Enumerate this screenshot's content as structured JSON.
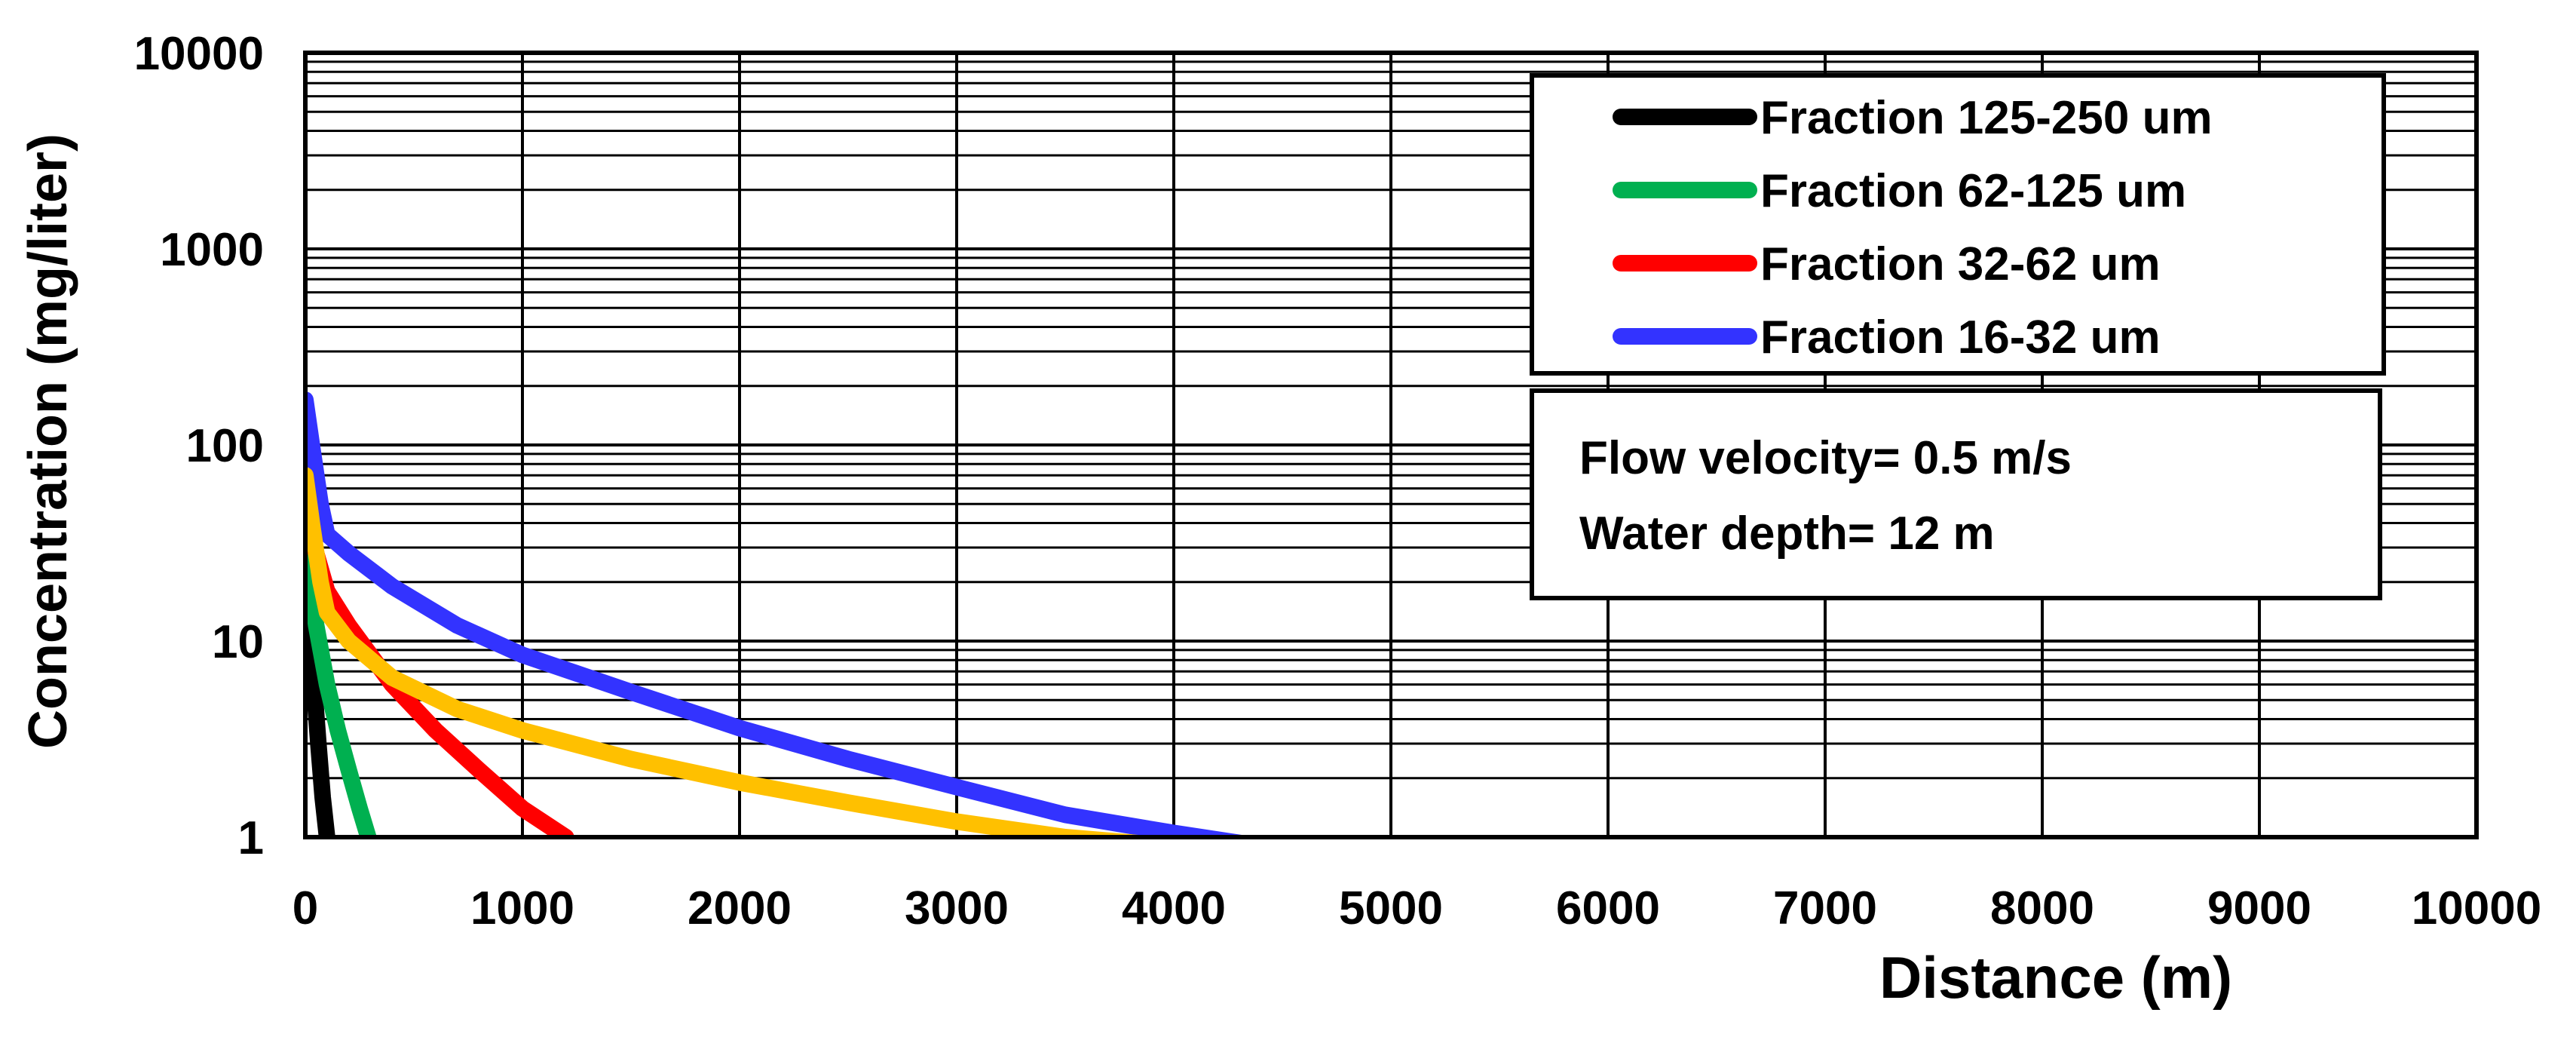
{
  "chart_data": {
    "type": "line",
    "xlabel": "Distance (m)",
    "ylabel": "Concentration (mg/liter)",
    "xlim": [
      0,
      10000
    ],
    "ylim": [
      1,
      10000
    ],
    "yscale": "log",
    "grid": true,
    "x_ticks": [
      "0",
      "1000",
      "2000",
      "3000",
      "4000",
      "5000",
      "6000",
      "7000",
      "8000",
      "9000",
      "10000"
    ],
    "y_ticks": [
      "1",
      "10",
      "100",
      "1000",
      "10000"
    ],
    "legend": {
      "placement": "top-right",
      "entries": [
        "Fraction 125-250 um",
        "Fraction 62-125 um",
        "Fraction 32-62 um",
        "Fraction 16-32 um"
      ]
    },
    "annotation_lines": [
      "Flow velocity= 0.5 m/s",
      "Water depth= 12 m"
    ],
    "series": [
      {
        "name": "Fraction 125-250 um",
        "color": "#000000",
        "x": [
          0,
          20,
          40,
          60,
          80,
          100
        ],
        "y": [
          25,
          12,
          6,
          3,
          1.6,
          1
        ]
      },
      {
        "name": "Fraction 62-125 um",
        "color": "#00b050",
        "x": [
          0,
          25,
          50,
          100,
          150,
          200,
          250,
          290
        ],
        "y": [
          40,
          20,
          12,
          6,
          3.5,
          2.2,
          1.4,
          1
        ]
      },
      {
        "name": "Fraction 32-62 um",
        "color": "#ff0000",
        "x": [
          0,
          50,
          100,
          200,
          400,
          600,
          800,
          1000,
          1200
        ],
        "y": [
          45,
          28,
          18,
          12,
          6,
          3.5,
          2.2,
          1.4,
          1
        ]
      },
      {
        "name": "Fraction 16-32 um",
        "color": "#3333ff",
        "x": [
          0,
          30,
          70,
          100,
          200,
          400,
          700,
          1000,
          1500,
          2000,
          2500,
          3000,
          3500,
          4000,
          4400
        ],
        "y": [
          170,
          100,
          50,
          35,
          28,
          19,
          12,
          8.5,
          5.5,
          3.6,
          2.5,
          1.8,
          1.3,
          1.05,
          0.9
        ]
      },
      {
        "color": "#ffc000",
        "x": [
          0,
          30,
          70,
          100,
          200,
          400,
          700,
          1000,
          1500,
          2000,
          2500,
          3000,
          3500,
          4000
        ],
        "y": [
          70,
          40,
          20,
          14,
          10,
          6.5,
          4.5,
          3.5,
          2.5,
          1.9,
          1.5,
          1.2,
          1.0,
          0.9
        ]
      }
    ]
  }
}
